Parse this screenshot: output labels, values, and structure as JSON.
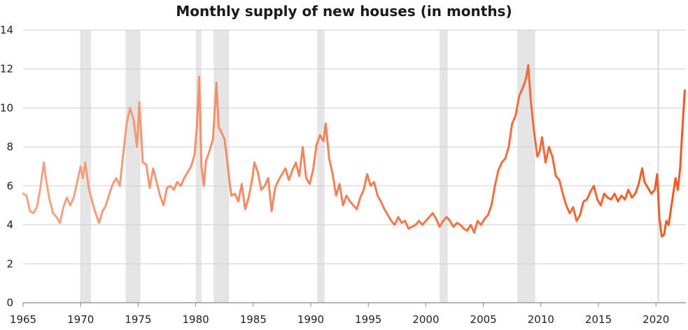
{
  "chart_data": {
    "type": "line",
    "title": "Monthly supply of new houses (in months)",
    "xlabel": "",
    "ylabel": "",
    "xlim": [
      1965,
      2022.6
    ],
    "ylim": [
      0,
      14
    ],
    "x_ticks": [
      "1965",
      "1970",
      "1975",
      "1980",
      "1985",
      "1990",
      "1995",
      "2000",
      "2005",
      "2010",
      "2015",
      "2020"
    ],
    "y_ticks": [
      "0",
      "2",
      "4",
      "6",
      "8",
      "10",
      "12",
      "14"
    ],
    "grid": "horizontal",
    "line_gradient": [
      "#f4a585",
      "#ee5a24"
    ],
    "recession_color": "#e5e5e5",
    "recessions": [
      [
        1969.95,
        1970.9
      ],
      [
        1973.9,
        1975.2
      ],
      [
        1980.0,
        1980.5
      ],
      [
        1981.55,
        1982.9
      ],
      [
        1990.55,
        1991.2
      ],
      [
        2001.2,
        2001.9
      ],
      [
        2007.95,
        2009.5
      ],
      [
        2020.1,
        2020.3
      ]
    ],
    "series": [
      {
        "values": [
          [
            1965.0,
            5.6
          ],
          [
            1965.3,
            5.5
          ],
          [
            1965.6,
            4.7
          ],
          [
            1965.9,
            4.6
          ],
          [
            1966.2,
            4.9
          ],
          [
            1966.5,
            5.9
          ],
          [
            1966.8,
            7.2
          ],
          [
            1967.0,
            6.3
          ],
          [
            1967.3,
            5.3
          ],
          [
            1967.6,
            4.6
          ],
          [
            1967.9,
            4.4
          ],
          [
            1968.2,
            4.1
          ],
          [
            1968.5,
            4.9
          ],
          [
            1968.8,
            5.4
          ],
          [
            1969.1,
            5.0
          ],
          [
            1969.4,
            5.4
          ],
          [
            1969.7,
            6.2
          ],
          [
            1970.0,
            7.0
          ],
          [
            1970.2,
            6.4
          ],
          [
            1970.4,
            7.2
          ],
          [
            1970.7,
            5.9
          ],
          [
            1971.0,
            5.2
          ],
          [
            1971.3,
            4.6
          ],
          [
            1971.6,
            4.1
          ],
          [
            1971.9,
            4.7
          ],
          [
            1972.2,
            5.0
          ],
          [
            1972.5,
            5.6
          ],
          [
            1972.8,
            6.1
          ],
          [
            1973.1,
            6.4
          ],
          [
            1973.4,
            6.0
          ],
          [
            1973.7,
            7.6
          ],
          [
            1974.0,
            9.2
          ],
          [
            1974.3,
            10.0
          ],
          [
            1974.6,
            9.4
          ],
          [
            1974.9,
            8.0
          ],
          [
            1975.1,
            10.3
          ],
          [
            1975.4,
            7.2
          ],
          [
            1975.7,
            7.1
          ],
          [
            1976.0,
            5.9
          ],
          [
            1976.3,
            6.9
          ],
          [
            1976.6,
            6.2
          ],
          [
            1976.9,
            5.5
          ],
          [
            1977.2,
            5.0
          ],
          [
            1977.5,
            5.9
          ],
          [
            1977.8,
            6.0
          ],
          [
            1978.1,
            5.8
          ],
          [
            1978.4,
            6.2
          ],
          [
            1978.7,
            6.0
          ],
          [
            1979.0,
            6.4
          ],
          [
            1979.3,
            6.7
          ],
          [
            1979.6,
            7.0
          ],
          [
            1979.9,
            7.6
          ],
          [
            1980.1,
            9.0
          ],
          [
            1980.3,
            11.6
          ],
          [
            1980.5,
            7.0
          ],
          [
            1980.7,
            6.0
          ],
          [
            1980.9,
            7.3
          ],
          [
            1981.2,
            7.8
          ],
          [
            1981.5,
            8.4
          ],
          [
            1981.8,
            11.3
          ],
          [
            1982.0,
            9.0
          ],
          [
            1982.2,
            8.8
          ],
          [
            1982.5,
            8.4
          ],
          [
            1982.7,
            7.5
          ],
          [
            1982.9,
            6.4
          ],
          [
            1983.1,
            5.5
          ],
          [
            1983.4,
            5.6
          ],
          [
            1983.7,
            5.2
          ],
          [
            1984.0,
            6.1
          ],
          [
            1984.3,
            4.8
          ],
          [
            1984.6,
            5.4
          ],
          [
            1984.9,
            6.3
          ],
          [
            1985.1,
            7.2
          ],
          [
            1985.4,
            6.7
          ],
          [
            1985.7,
            5.8
          ],
          [
            1986.0,
            6.0
          ],
          [
            1986.3,
            6.4
          ],
          [
            1986.6,
            4.7
          ],
          [
            1986.9,
            5.9
          ],
          [
            1987.2,
            6.3
          ],
          [
            1987.5,
            6.6
          ],
          [
            1987.8,
            6.9
          ],
          [
            1988.1,
            6.3
          ],
          [
            1988.4,
            6.8
          ],
          [
            1988.7,
            7.2
          ],
          [
            1989.0,
            6.5
          ],
          [
            1989.3,
            8.0
          ],
          [
            1989.6,
            6.4
          ],
          [
            1989.9,
            6.1
          ],
          [
            1990.2,
            6.8
          ],
          [
            1990.5,
            8.1
          ],
          [
            1990.8,
            8.6
          ],
          [
            1991.1,
            8.3
          ],
          [
            1991.3,
            9.2
          ],
          [
            1991.6,
            7.4
          ],
          [
            1991.9,
            6.6
          ],
          [
            1992.2,
            5.5
          ],
          [
            1992.5,
            6.1
          ],
          [
            1992.8,
            5.0
          ],
          [
            1993.1,
            5.5
          ],
          [
            1993.4,
            5.2
          ],
          [
            1993.7,
            5.0
          ],
          [
            1994.0,
            4.8
          ],
          [
            1994.3,
            5.4
          ],
          [
            1994.6,
            5.8
          ],
          [
            1994.9,
            6.6
          ],
          [
            1995.2,
            6.0
          ],
          [
            1995.5,
            6.2
          ],
          [
            1995.8,
            5.5
          ],
          [
            1996.1,
            5.2
          ],
          [
            1996.4,
            4.8
          ],
          [
            1996.7,
            4.5
          ],
          [
            1997.0,
            4.2
          ],
          [
            1997.3,
            4.0
          ],
          [
            1997.6,
            4.4
          ],
          [
            1997.9,
            4.1
          ],
          [
            1998.2,
            4.2
          ],
          [
            1998.5,
            3.8
          ],
          [
            1998.8,
            3.9
          ],
          [
            1999.1,
            4.0
          ],
          [
            1999.4,
            4.2
          ],
          [
            1999.7,
            4.0
          ],
          [
            2000.0,
            4.2
          ],
          [
            2000.3,
            4.4
          ],
          [
            2000.6,
            4.6
          ],
          [
            2000.9,
            4.3
          ],
          [
            2001.2,
            3.9
          ],
          [
            2001.5,
            4.2
          ],
          [
            2001.8,
            4.4
          ],
          [
            2002.1,
            4.2
          ],
          [
            2002.4,
            3.9
          ],
          [
            2002.7,
            4.1
          ],
          [
            2003.0,
            4.0
          ],
          [
            2003.3,
            3.8
          ],
          [
            2003.6,
            3.7
          ],
          [
            2003.9,
            4.0
          ],
          [
            2004.2,
            3.6
          ],
          [
            2004.5,
            4.2
          ],
          [
            2004.8,
            4.0
          ],
          [
            2005.1,
            4.3
          ],
          [
            2005.4,
            4.5
          ],
          [
            2005.7,
            5.0
          ],
          [
            2006.0,
            6.0
          ],
          [
            2006.3,
            6.8
          ],
          [
            2006.6,
            7.2
          ],
          [
            2006.9,
            7.4
          ],
          [
            2007.2,
            8.0
          ],
          [
            2007.5,
            9.2
          ],
          [
            2007.8,
            9.6
          ],
          [
            2008.1,
            10.6
          ],
          [
            2008.4,
            11.0
          ],
          [
            2008.7,
            11.5
          ],
          [
            2008.9,
            12.2
          ],
          [
            2009.1,
            10.5
          ],
          [
            2009.4,
            8.8
          ],
          [
            2009.7,
            7.5
          ],
          [
            2009.9,
            7.8
          ],
          [
            2010.1,
            8.5
          ],
          [
            2010.4,
            7.2
          ],
          [
            2010.7,
            8.0
          ],
          [
            2011.0,
            7.5
          ],
          [
            2011.3,
            6.5
          ],
          [
            2011.6,
            6.3
          ],
          [
            2011.9,
            5.6
          ],
          [
            2012.2,
            5.0
          ],
          [
            2012.5,
            4.6
          ],
          [
            2012.8,
            4.9
          ],
          [
            2013.1,
            4.2
          ],
          [
            2013.4,
            4.5
          ],
          [
            2013.7,
            5.2
          ],
          [
            2014.0,
            5.3
          ],
          [
            2014.3,
            5.7
          ],
          [
            2014.6,
            6.0
          ],
          [
            2014.9,
            5.3
          ],
          [
            2015.2,
            5.0
          ],
          [
            2015.5,
            5.6
          ],
          [
            2015.8,
            5.4
          ],
          [
            2016.1,
            5.3
          ],
          [
            2016.4,
            5.6
          ],
          [
            2016.7,
            5.2
          ],
          [
            2017.0,
            5.5
          ],
          [
            2017.3,
            5.3
          ],
          [
            2017.6,
            5.8
          ],
          [
            2017.9,
            5.4
          ],
          [
            2018.2,
            5.6
          ],
          [
            2018.5,
            6.1
          ],
          [
            2018.8,
            6.9
          ],
          [
            2019.0,
            6.2
          ],
          [
            2019.3,
            5.9
          ],
          [
            2019.6,
            5.6
          ],
          [
            2019.9,
            5.8
          ],
          [
            2020.1,
            6.6
          ],
          [
            2020.3,
            4.3
          ],
          [
            2020.5,
            3.4
          ],
          [
            2020.7,
            3.5
          ],
          [
            2020.9,
            4.2
          ],
          [
            2021.1,
            4.0
          ],
          [
            2021.3,
            4.8
          ],
          [
            2021.5,
            5.6
          ],
          [
            2021.7,
            6.4
          ],
          [
            2021.9,
            5.8
          ],
          [
            2022.1,
            6.9
          ],
          [
            2022.3,
            9.0
          ],
          [
            2022.5,
            10.9
          ]
        ]
      }
    ]
  }
}
